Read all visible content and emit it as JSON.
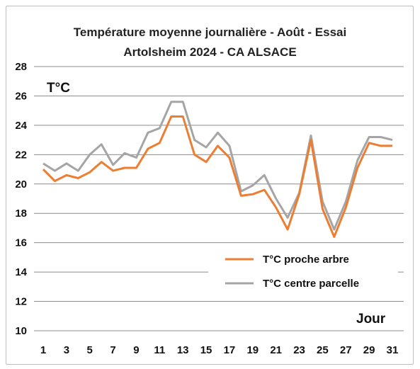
{
  "chart_data": {
    "type": "line",
    "title_line1": "Température moyenne journalière - Août - Essai",
    "title_line2": "Artolsheim 2024 - CA ALSACE",
    "ylabel": "T°C",
    "xlabel": "Jour",
    "ylim": [
      10,
      28
    ],
    "yticks": [
      10,
      12,
      14,
      16,
      18,
      20,
      22,
      24,
      26,
      28
    ],
    "xlim": [
      1,
      31
    ],
    "xticks": [
      1,
      3,
      5,
      7,
      9,
      11,
      13,
      15,
      17,
      19,
      21,
      23,
      25,
      27,
      29,
      31
    ],
    "grid": "horizontal",
    "legend_position": "bottom-right",
    "x": [
      1,
      2,
      3,
      4,
      5,
      6,
      7,
      8,
      9,
      10,
      11,
      12,
      13,
      14,
      15,
      16,
      17,
      18,
      19,
      20,
      21,
      22,
      23,
      24,
      25,
      26,
      27,
      28,
      29,
      30,
      31
    ],
    "series": [
      {
        "name": "T°C proche arbre",
        "color": "#ed7d31",
        "values": [
          21.0,
          20.2,
          20.6,
          20.4,
          20.8,
          21.5,
          20.9,
          21.1,
          21.1,
          22.4,
          22.8,
          24.6,
          24.6,
          22.0,
          21.5,
          22.6,
          21.8,
          19.2,
          19.3,
          19.6,
          18.4,
          16.9,
          19.3,
          23.0,
          18.3,
          16.4,
          18.4,
          21.1,
          22.8,
          22.6,
          22.6
        ]
      },
      {
        "name": "T°C centre parcelle",
        "color": "#a5a5a5",
        "values": [
          21.4,
          20.9,
          21.4,
          20.9,
          22.0,
          22.7,
          21.3,
          22.1,
          21.8,
          23.5,
          23.8,
          25.6,
          25.6,
          23.0,
          22.5,
          23.5,
          22.6,
          19.5,
          19.9,
          20.6,
          19.0,
          17.7,
          19.4,
          23.3,
          18.8,
          16.9,
          18.8,
          21.6,
          23.2,
          23.2,
          23.0
        ]
      }
    ]
  }
}
